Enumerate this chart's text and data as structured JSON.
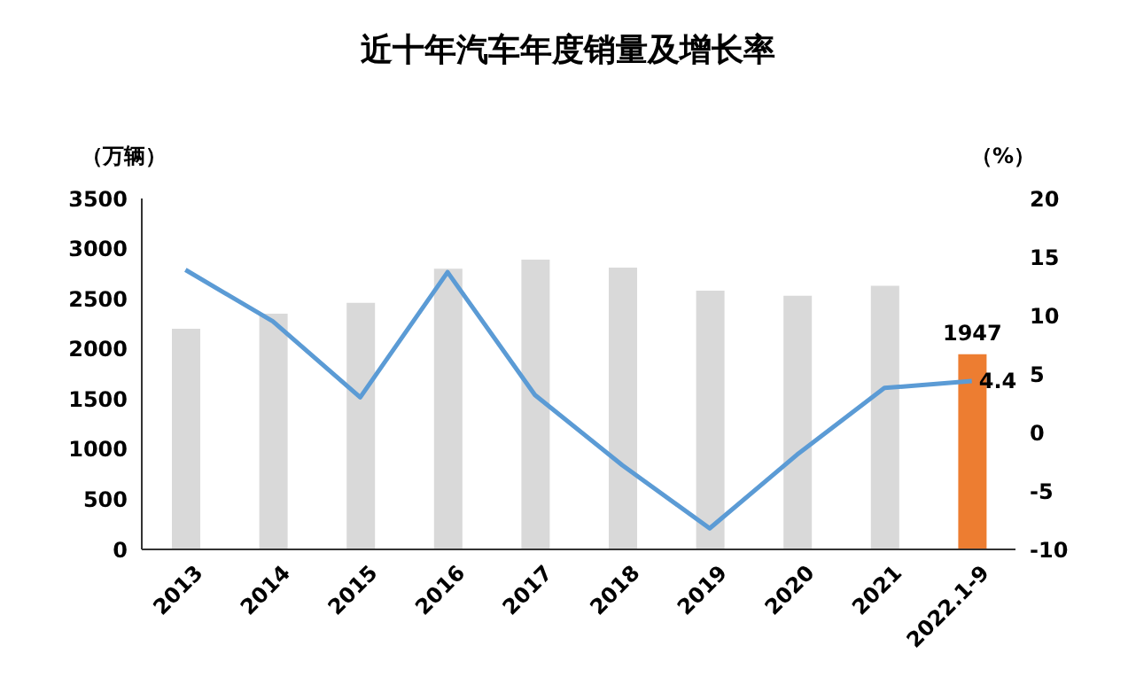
{
  "chart_data": {
    "type": "bar",
    "title": "近十年汽车年度销量及增长率",
    "ylabel": "（万辆）",
    "y2label": "（%）",
    "categories": [
      "2013",
      "2014",
      "2015",
      "2016",
      "2017",
      "2018",
      "2019",
      "2020",
      "2021",
      "2022.1-9"
    ],
    "series": [
      {
        "colors": [
          "#d9d9d9",
          "#d9d9d9",
          "#d9d9d9",
          "#d9d9d9",
          "#d9d9d9",
          "#d9d9d9",
          "#d9d9d9",
          "#d9d9d9",
          "#d9d9d9",
          "#ed7d31"
        ],
        "values": [
          2200,
          2350,
          2460,
          2800,
          2890,
          2810,
          2580,
          2530,
          2630,
          1947
        ],
        "value_labels": [
          null,
          null,
          null,
          null,
          null,
          null,
          null,
          null,
          null,
          "1947"
        ]
      },
      {
        "type": "line",
        "axis": "y2",
        "color": "#5b9bd5",
        "values": [
          13.9,
          9.5,
          3,
          13.7,
          3.2,
          -2.8,
          -8.2,
          -1.9,
          3.8,
          4.4
        ],
        "value_labels": [
          null,
          null,
          null,
          null,
          null,
          null,
          null,
          null,
          null,
          "4.4"
        ]
      }
    ],
    "ylim": [
      0,
      3500
    ],
    "yticks": [
      0,
      500,
      1000,
      1500,
      2000,
      2500,
      3000,
      3500
    ],
    "y2lim": [
      -10,
      20
    ],
    "y2ticks": [
      -10,
      -5,
      0,
      5,
      10,
      15,
      20
    ],
    "marker": "none",
    "line_style": "solid"
  }
}
